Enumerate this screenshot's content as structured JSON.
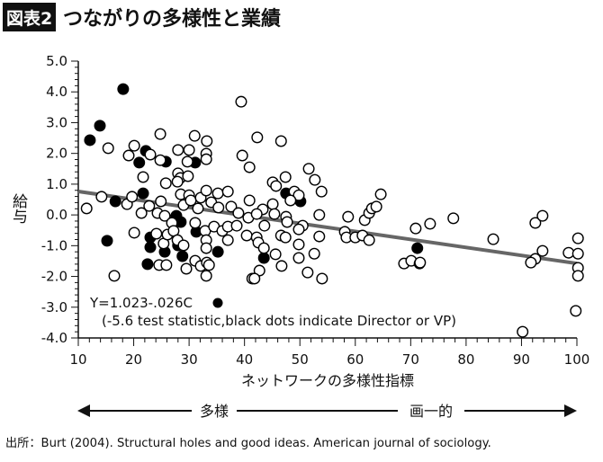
{
  "header": {
    "badge": "図表2",
    "title": "つながりの多様性と業績"
  },
  "chart_data": {
    "type": "scatter",
    "xlabel": "ネットワークの多様性指標",
    "ylabel": "給与",
    "xlim": [
      10,
      100
    ],
    "ylim": [
      -4.0,
      5.0
    ],
    "xticks": [
      "10",
      "20",
      "30",
      "40",
      "50",
      "60",
      "70",
      "80",
      "90",
      "100"
    ],
    "yticks": [
      "5.0",
      "4.0",
      "3.0",
      "2.0",
      "1.0",
      "0.0",
      "-1.0",
      "-2.0",
      "-3.0",
      "-4.0"
    ],
    "grid": false,
    "regression": {
      "intercept": 1.023,
      "slope": -0.026,
      "color": "#666666"
    },
    "annotation": {
      "equation": "Y=1.023-.026C",
      "note": "(-5.6 test statistic,black dots indicate Director or VP)"
    },
    "series": [
      {
        "marker": "filled-circle",
        "color": "#000000",
        "points": [
          [
            18.1,
            4.09
          ],
          [
            13.9,
            2.9
          ],
          [
            12.1,
            2.43
          ],
          [
            22.2,
            2.08
          ],
          [
            21.0,
            1.7
          ],
          [
            25.8,
            1.73
          ],
          [
            31.1,
            1.7
          ],
          [
            21.7,
            0.7
          ],
          [
            16.7,
            0.44
          ],
          [
            15.2,
            -0.84
          ],
          [
            23.0,
            -0.73
          ],
          [
            23.0,
            -1.05
          ],
          [
            27.7,
            -0.03
          ],
          [
            28.5,
            -0.23
          ],
          [
            31.3,
            -0.55
          ],
          [
            28.0,
            -0.99
          ],
          [
            25.6,
            -1.2
          ],
          [
            28.8,
            -1.34
          ],
          [
            35.2,
            -1.2
          ],
          [
            22.5,
            -1.6
          ],
          [
            47.5,
            0.7
          ],
          [
            50.1,
            0.44
          ],
          [
            43.5,
            -1.4
          ],
          [
            71.2,
            -1.08
          ]
        ]
      },
      {
        "marker": "open-circle",
        "color": "#000000",
        "points": [
          [
            11.5,
            0.21
          ],
          [
            14.2,
            0.59
          ],
          [
            15.4,
            2.17
          ],
          [
            16.5,
            -1.98
          ],
          [
            20.1,
            2.25
          ],
          [
            19.1,
            1.93
          ],
          [
            20.1,
            -0.58
          ],
          [
            18.8,
            0.35
          ],
          [
            19.7,
            0.59
          ],
          [
            21.4,
            0.06
          ],
          [
            21.7,
            1.23
          ],
          [
            23.0,
            1.96
          ],
          [
            24.8,
            2.63
          ],
          [
            24.8,
            1.78
          ],
          [
            24.9,
            0.44
          ],
          [
            22.8,
            0.29
          ],
          [
            24.3,
            0.06
          ],
          [
            25.6,
            -0.03
          ],
          [
            25.8,
            1.03
          ],
          [
            24.1,
            -0.61
          ],
          [
            25.4,
            -0.93
          ],
          [
            26.1,
            -0.64
          ],
          [
            24.6,
            -1.63
          ],
          [
            25.9,
            -1.63
          ],
          [
            26.9,
            -0.26
          ],
          [
            27.2,
            -0.52
          ],
          [
            27.9,
            -0.82
          ],
          [
            29.0,
            -0.99
          ],
          [
            28.0,
            1.35
          ],
          [
            28.4,
            1.2
          ],
          [
            27.9,
            1.08
          ],
          [
            29.8,
            1.26
          ],
          [
            29.7,
            1.73
          ],
          [
            28.0,
            2.11
          ],
          [
            30.0,
            2.11
          ],
          [
            31.0,
            2.57
          ],
          [
            33.2,
            2.4
          ],
          [
            33.1,
            1.99
          ],
          [
            33.1,
            1.81
          ],
          [
            28.5,
            0.67
          ],
          [
            29.0,
            0.32
          ],
          [
            30.0,
            0.64
          ],
          [
            30.3,
            0.47
          ],
          [
            31.6,
            0.21
          ],
          [
            32.1,
            0.56
          ],
          [
            33.1,
            0.79
          ],
          [
            34.0,
            0.41
          ],
          [
            35.3,
            0.24
          ],
          [
            35.2,
            0.7
          ],
          [
            37.0,
            0.76
          ],
          [
            37.6,
            0.27
          ],
          [
            38.9,
            0.06
          ],
          [
            31.1,
            -0.26
          ],
          [
            32.9,
            -0.52
          ],
          [
            33.1,
            -0.82
          ],
          [
            33.1,
            -1.08
          ],
          [
            34.5,
            -0.38
          ],
          [
            36.0,
            -0.52
          ],
          [
            37.0,
            -0.38
          ],
          [
            38.6,
            -0.35
          ],
          [
            37.0,
            -0.82
          ],
          [
            31.1,
            -1.49
          ],
          [
            32.1,
            -1.66
          ],
          [
            33.2,
            -1.55
          ],
          [
            33.6,
            -1.63
          ],
          [
            33.1,
            -1.98
          ],
          [
            29.5,
            -1.75
          ],
          [
            39.4,
            3.68
          ],
          [
            39.6,
            1.93
          ],
          [
            40.9,
            1.55
          ],
          [
            40.9,
            0.47
          ],
          [
            40.7,
            -0.09
          ],
          [
            40.4,
            -0.67
          ],
          [
            41.4,
            -2.07
          ],
          [
            42.3,
            2.52
          ],
          [
            46.6,
            2.4
          ],
          [
            43.3,
            0.18
          ],
          [
            42.2,
            0.03
          ],
          [
            45.1,
            0.35
          ],
          [
            45.4,
            0.03
          ],
          [
            43.6,
            -0.35
          ],
          [
            42.2,
            -0.73
          ],
          [
            42.5,
            -0.9
          ],
          [
            43.5,
            -1.08
          ],
          [
            45.6,
            -1.28
          ],
          [
            46.7,
            -1.66
          ],
          [
            42.7,
            -1.81
          ],
          [
            41.8,
            -2.07
          ],
          [
            45.1,
            1.06
          ],
          [
            45.7,
            0.94
          ],
          [
            47.4,
            1.23
          ],
          [
            49.0,
            0.76
          ],
          [
            49.8,
            0.64
          ],
          [
            48.3,
            0.47
          ],
          [
            47.5,
            -0.06
          ],
          [
            47.7,
            -0.23
          ],
          [
            50.5,
            -0.35
          ],
          [
            49.8,
            -0.47
          ],
          [
            46.6,
            -0.67
          ],
          [
            47.4,
            -0.73
          ],
          [
            49.8,
            -0.96
          ],
          [
            49.8,
            -1.4
          ],
          [
            51.4,
            -1.87
          ],
          [
            52.6,
            -1.26
          ],
          [
            54.0,
            -2.07
          ],
          [
            51.6,
            1.5
          ],
          [
            52.7,
            1.14
          ],
          [
            53.9,
            0.76
          ],
          [
            53.5,
            0.0
          ],
          [
            53.5,
            -0.7
          ],
          [
            58.7,
            -0.06
          ],
          [
            58.1,
            -0.55
          ],
          [
            58.4,
            -0.73
          ],
          [
            60.0,
            -0.73
          ],
          [
            61.3,
            -0.67
          ],
          [
            62.5,
            -0.82
          ],
          [
            61.7,
            -0.17
          ],
          [
            62.5,
            0.06
          ],
          [
            63.0,
            0.21
          ],
          [
            63.8,
            0.27
          ],
          [
            64.6,
            0.67
          ],
          [
            70.9,
            -0.44
          ],
          [
            68.8,
            -1.58
          ],
          [
            70.1,
            -1.49
          ],
          [
            71.6,
            -1.58
          ],
          [
            73.5,
            -0.29
          ],
          [
            77.7,
            -0.11
          ],
          [
            71.7,
            -1.55
          ],
          [
            84.9,
            -0.79
          ],
          [
            92.5,
            -0.26
          ],
          [
            93.8,
            -0.03
          ],
          [
            93.8,
            -1.17
          ],
          [
            92.5,
            -1.43
          ],
          [
            91.7,
            -1.55
          ],
          [
            98.5,
            -1.23
          ],
          [
            100.2,
            -0.76
          ],
          [
            100.2,
            -1.26
          ],
          [
            100.2,
            -1.72
          ],
          [
            100.2,
            -1.98
          ],
          [
            99.8,
            -3.12
          ],
          [
            90.2,
            -3.8
          ]
        ]
      }
    ]
  },
  "scale_arrow": {
    "left_label": "多様",
    "right_label": "画一的"
  },
  "footer": {
    "source": "出所：Burt (2004). Structural holes and good ideas. American journal of sociology."
  }
}
